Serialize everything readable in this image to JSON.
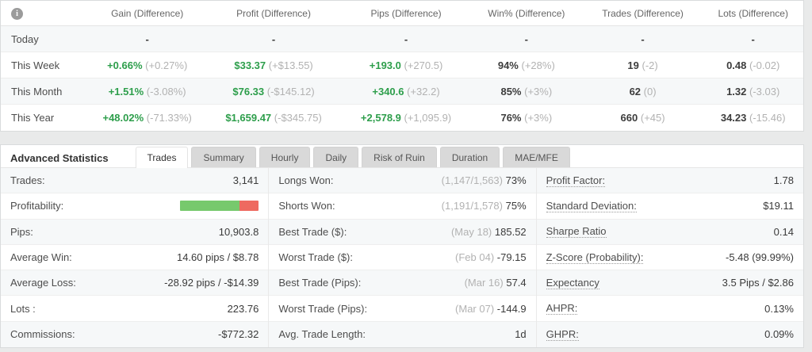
{
  "colors": {
    "positive_green": "#2d9e4b",
    "muted_gray": "#b2b2b2",
    "bar_green": "#77c96d",
    "bar_red": "#ee6a60"
  },
  "summary_table": {
    "columns": [
      "Gain (Difference)",
      "Profit (Difference)",
      "Pips (Difference)",
      "Win% (Difference)",
      "Trades (Difference)",
      "Lots (Difference)"
    ],
    "rows": [
      {
        "label": "Today",
        "cells": [
          {
            "main": "-",
            "paren": ""
          },
          {
            "main": "-",
            "paren": ""
          },
          {
            "main": "-",
            "paren": ""
          },
          {
            "main": "-",
            "paren": ""
          },
          {
            "main": "-",
            "paren": ""
          },
          {
            "main": "-",
            "paren": ""
          }
        ]
      },
      {
        "label": "This Week",
        "cells": [
          {
            "main": "+0.66%",
            "paren": "(+0.27%)"
          },
          {
            "main": "$33.37",
            "paren": "(+$13.55)"
          },
          {
            "main": "+193.0",
            "paren": "(+270.5)"
          },
          {
            "main": "94%",
            "paren": "(+28%)"
          },
          {
            "main": "19",
            "paren": "(-2)"
          },
          {
            "main": "0.48",
            "paren": "(-0.02)"
          }
        ]
      },
      {
        "label": "This Month",
        "cells": [
          {
            "main": "+1.51%",
            "paren": "(-3.08%)"
          },
          {
            "main": "$76.33",
            "paren": "(-$145.12)"
          },
          {
            "main": "+340.6",
            "paren": "(+32.2)"
          },
          {
            "main": "85%",
            "paren": "(+3%)"
          },
          {
            "main": "62",
            "paren": "(0)"
          },
          {
            "main": "1.32",
            "paren": "(-3.03)"
          }
        ]
      },
      {
        "label": "This Year",
        "cells": [
          {
            "main": "+48.02%",
            "paren": "(-71.33%)"
          },
          {
            "main": "$1,659.47",
            "paren": "(-$345.75)"
          },
          {
            "main": "+2,578.9",
            "paren": "(+1,095.9)"
          },
          {
            "main": "76%",
            "paren": "(+3%)"
          },
          {
            "main": "660",
            "paren": "(+45)"
          },
          {
            "main": "34.23",
            "paren": "(-15.46)"
          }
        ]
      }
    ]
  },
  "advanced": {
    "title": "Advanced Statistics",
    "tabs": [
      "Trades",
      "Summary",
      "Hourly",
      "Daily",
      "Risk of Ruin",
      "Duration",
      "MAE/MFE"
    ],
    "active_tab": "Trades",
    "profitability": {
      "green_pct": 75,
      "red_pct": 25
    },
    "left": [
      {
        "label": "Trades:",
        "value": "3,141"
      },
      {
        "label": "Profitability:",
        "value": ""
      },
      {
        "label": "Pips:",
        "value": "10,903.8"
      },
      {
        "label": "Average Win:",
        "value": "14.60 pips / $8.78"
      },
      {
        "label": "Average Loss:",
        "value": "-28.92 pips / -$14.39"
      },
      {
        "label": "Lots :",
        "value": "223.76"
      },
      {
        "label": "Commissions:",
        "value": "-$772.32"
      }
    ],
    "middle": [
      {
        "label": "Longs Won:",
        "paren": "(1,147/1,563)",
        "value": "73%"
      },
      {
        "label": "Shorts Won:",
        "paren": "(1,191/1,578)",
        "value": "75%"
      },
      {
        "label": "Best Trade ($):",
        "paren": "(May 18)",
        "value": "185.52"
      },
      {
        "label": "Worst Trade ($):",
        "paren": "(Feb 04)",
        "value": "-79.15"
      },
      {
        "label": "Best Trade (Pips):",
        "paren": "(Mar 16)",
        "value": "57.4"
      },
      {
        "label": "Worst Trade (Pips):",
        "paren": "(Mar 07)",
        "value": "-144.9"
      },
      {
        "label": "Avg. Trade Length:",
        "paren": "",
        "value": "1d"
      }
    ],
    "right": [
      {
        "label": "Profit Factor:",
        "value": "1.78"
      },
      {
        "label": "Standard Deviation:",
        "value": "$19.11"
      },
      {
        "label": "Sharpe Ratio",
        "value": "0.14"
      },
      {
        "label": "Z-Score (Probability):",
        "value": "-5.48 (99.99%)"
      },
      {
        "label": "Expectancy",
        "value": "3.5 Pips / $2.86"
      },
      {
        "label": "AHPR:",
        "value": "0.13%"
      },
      {
        "label": "GHPR:",
        "value": "0.09%"
      }
    ]
  }
}
